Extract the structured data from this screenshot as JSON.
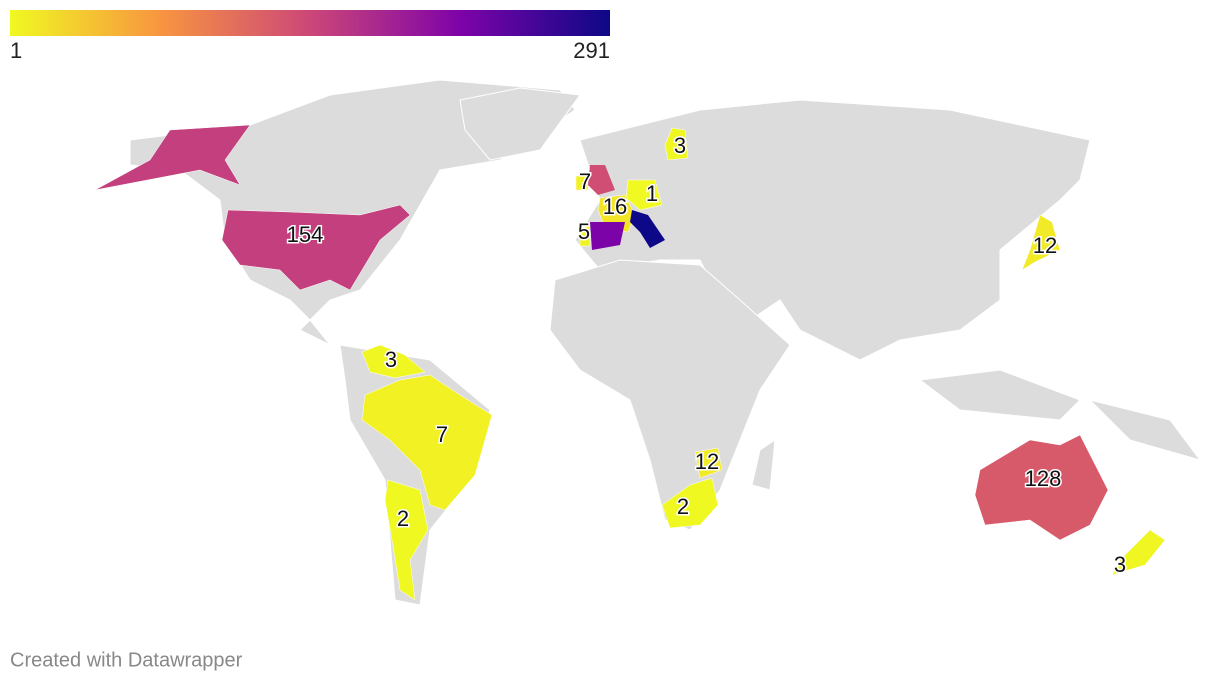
{
  "legend": {
    "min": 1,
    "max": 291,
    "colors": [
      "#f0f921",
      "#f89540",
      "#cc4778",
      "#7e03a8",
      "#0d0887"
    ]
  },
  "regions": [
    {
      "value": 154
    },
    {
      "value": 128
    },
    {
      "value": 7
    },
    {
      "value": 2
    },
    {
      "value": 3
    },
    {
      "value": 2
    },
    {
      "value": 12
    },
    {
      "value": 12
    },
    {
      "value": 3
    },
    {
      "value": 3
    },
    {
      "value": 1
    },
    {
      "value": 16
    },
    {
      "value": 5
    },
    {
      "value": 7
    }
  ],
  "other_regions": [
    {
      "value": 140
    },
    {
      "value": 220
    },
    {
      "value": 291
    }
  ],
  "footer": "Created with Datawrapper"
}
